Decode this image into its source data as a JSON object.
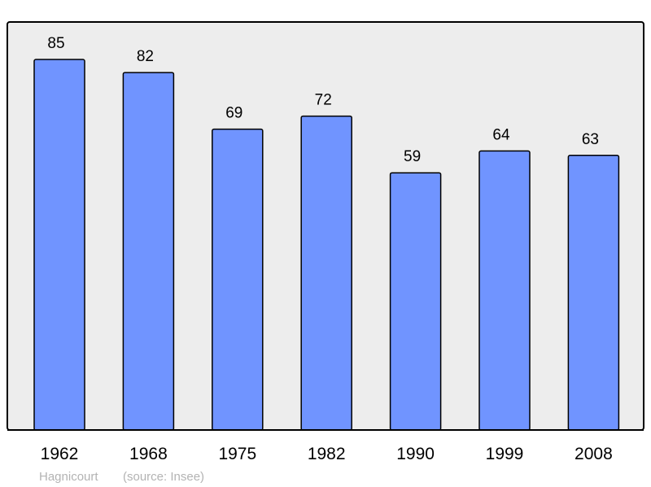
{
  "chart_data": {
    "type": "bar",
    "categories": [
      "1962",
      "1968",
      "1975",
      "1982",
      "1990",
      "1999",
      "2008"
    ],
    "values": [
      85,
      82,
      69,
      72,
      59,
      64,
      63
    ],
    "title": "",
    "xlabel": "",
    "ylabel": "",
    "ylim": [
      0,
      93.6
    ],
    "grid": false,
    "data_labels": true,
    "colors": {
      "bar": "#7094ff",
      "plot_background": "#ededed",
      "border": "#000000"
    }
  },
  "footer": {
    "place": "Hagnicourt",
    "source": "(source: Insee)"
  }
}
